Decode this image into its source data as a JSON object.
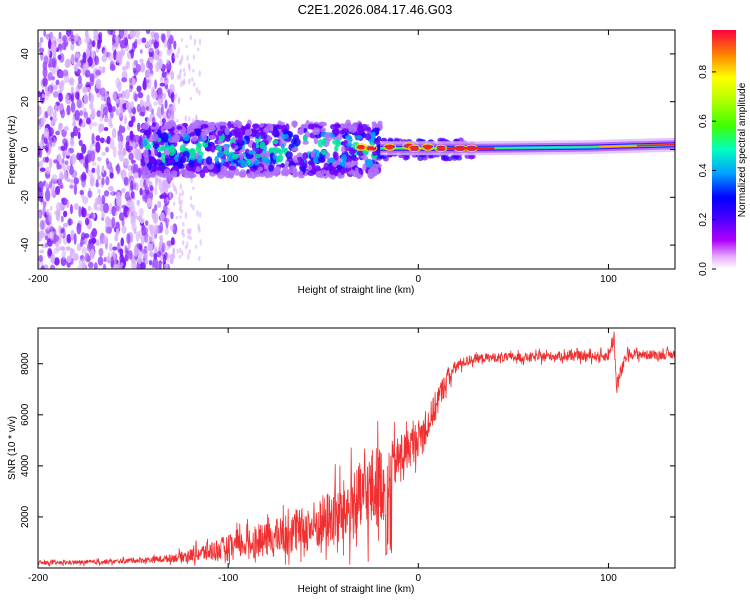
{
  "title": "C2E1.2026.084.17.46.G03",
  "chart_data": [
    {
      "type": "heatmap",
      "xlabel": "Height of straight line (km)",
      "ylabel": "Frequency (Hz)",
      "xlim": [
        -200,
        135
      ],
      "ylim": [
        -50,
        50
      ],
      "xticks": [
        -200,
        -100,
        0,
        100
      ],
      "xtick_labels": [
        "-200",
        "-100",
        "0",
        "100"
      ],
      "yticks": [
        -40,
        -20,
        0,
        20,
        40
      ],
      "ytick_labels": [
        "-40",
        "-20",
        "0",
        "20",
        "40"
      ],
      "colorbar": {
        "label": "Normalized spectral amplitude",
        "range": [
          0,
          0.97
        ],
        "ticks": [
          0,
          0.2,
          0.4,
          0.6,
          0.8
        ],
        "tick_labels": [
          "0.0",
          "0.2",
          "0.4",
          "0.6",
          "0.8"
        ],
        "colormap": [
          "#ffffff",
          "#ff00ff",
          "#8000ff",
          "#0000ff",
          "#00c0ff",
          "#00ff80",
          "#60ff00",
          "#ffff00",
          "#ff8000",
          "#ff0000"
        ]
      },
      "description_regions": [
        {
          "x_range": [
            -200,
            -130
          ],
          "freq_range": [
            -50,
            50
          ],
          "amplitude": 0.05
        },
        {
          "x_range": [
            -145,
            -20
          ],
          "freq_range": [
            -12,
            12
          ],
          "amplitude": 0.3
        },
        {
          "x_range": [
            -20,
            30
          ],
          "freq_range": [
            -4,
            4
          ],
          "amplitude": 0.7
        },
        {
          "x_range": [
            30,
            135
          ],
          "freq_range": [
            -2,
            3
          ],
          "amplitude": 0.5
        }
      ]
    },
    {
      "type": "line",
      "xlabel": "Height of straight line (km)",
      "ylabel": "SNR (10 * v/v)",
      "xlim": [
        -200,
        135
      ],
      "ylim": [
        0,
        9400
      ],
      "xticks": [
        -200,
        -100,
        0,
        100
      ],
      "xtick_labels": [
        "-200",
        "-100",
        "0",
        "100"
      ],
      "yticks": [
        2000,
        4000,
        6000,
        8000
      ],
      "ytick_labels": [
        "2000",
        "4000",
        "6000",
        "8000"
      ],
      "series": [
        {
          "name": "SNR",
          "color": "#f03030",
          "x": [
            -200,
            -190,
            -180,
            -170,
            -160,
            -150,
            -140,
            -130,
            -120,
            -110,
            -100,
            -90,
            -80,
            -70,
            -60,
            -50,
            -40,
            -35,
            -30,
            -25,
            -20,
            -16,
            -15,
            -10,
            -5,
            0,
            5,
            10,
            15,
            20,
            25,
            30,
            40,
            50,
            60,
            70,
            80,
            90,
            100,
            103,
            104,
            110,
            120,
            130,
            135
          ],
          "values": [
            200,
            200,
            220,
            230,
            250,
            300,
            320,
            380,
            500,
            650,
            800,
            950,
            1100,
            1300,
            1500,
            1800,
            2100,
            2400,
            2700,
            3000,
            3300,
            3500,
            3900,
            4300,
            4700,
            5100,
            5600,
            6500,
            7400,
            7900,
            8100,
            8200,
            8250,
            8250,
            8250,
            8300,
            8300,
            8300,
            8300,
            9100,
            7100,
            8400,
            8350,
            8350,
            8350
          ],
          "noise": [
            80,
            80,
            80,
            90,
            90,
            100,
            120,
            150,
            250,
            400,
            500,
            550,
            650,
            800,
            900,
            1100,
            1300,
            1400,
            1500,
            1700,
            1600,
            1500,
            1000,
            900,
            800,
            700,
            650,
            600,
            400,
            250,
            200,
            180,
            180,
            180,
            180,
            180,
            180,
            180,
            200,
            400,
            400,
            200,
            180,
            180,
            180
          ]
        }
      ]
    }
  ]
}
